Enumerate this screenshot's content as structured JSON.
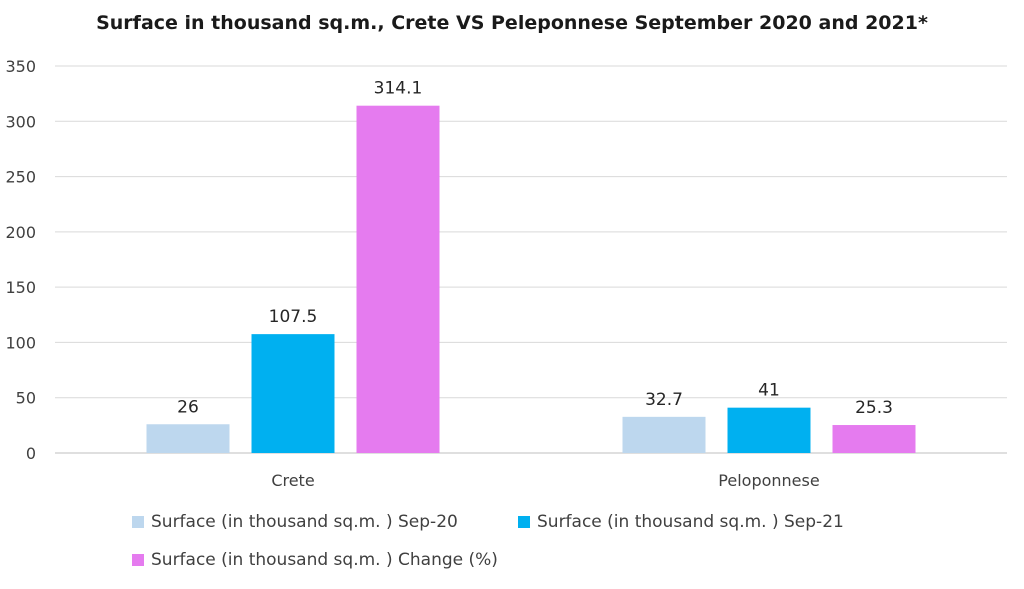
{
  "chart_data": {
    "type": "bar",
    "title": "Surface in thousand sq.m., Crete VS Peleponnese September 2020 and 2021*",
    "categories": [
      "Crete",
      "Peloponnese"
    ],
    "series": [
      {
        "name": "Surface (in thousand sq.m. ) Sep-20",
        "values": [
          26,
          32.7
        ],
        "color": "#bdd7ee",
        "labels": [
          "26",
          "32.7"
        ]
      },
      {
        "name": "Surface (in thousand sq.m. ) Sep-21",
        "values": [
          107.5,
          41
        ],
        "color": "#00b0f0",
        "labels": [
          "107.5",
          "41"
        ]
      },
      {
        "name": "Surface (in thousand sq.m. ) Change (%)",
        "values": [
          314.1,
          25.3
        ],
        "color": "#e57bef",
        "labels": [
          "314.1",
          "25.3"
        ]
      }
    ],
    "ylim": [
      0,
      350
    ],
    "yticks": [
      "0",
      "50",
      "100",
      "150",
      "200",
      "250",
      "300",
      "350"
    ],
    "xlabel": "",
    "ylabel": "",
    "grid": true,
    "legend_position": "bottom"
  }
}
